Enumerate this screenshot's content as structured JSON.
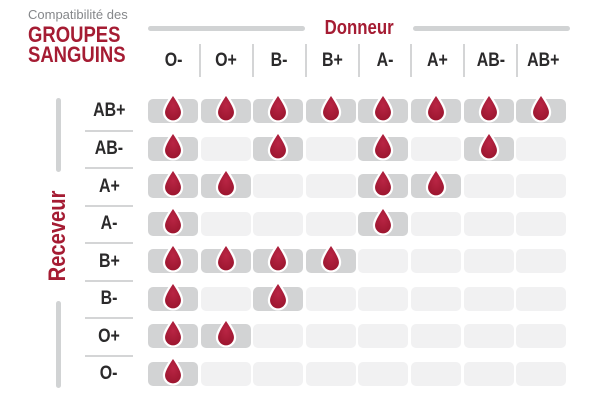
{
  "title": {
    "eyebrow": "Compatibilité des",
    "main_line1": "GROUPES",
    "main_line2": "SANGUINS"
  },
  "donor_axis": {
    "label": "Donneur"
  },
  "receiver_axis": {
    "label": "Receveur"
  },
  "chart_data": {
    "type": "heatmap",
    "title": "Compatibilité des groupes sanguins",
    "x_axis_label": "Donneur",
    "y_axis_label": "Receveur",
    "columns": [
      "O-",
      "O+",
      "B-",
      "B+",
      "A-",
      "A+",
      "AB-",
      "AB+"
    ],
    "rows": [
      "AB+",
      "AB-",
      "A+",
      "A-",
      "B+",
      "B-",
      "O+",
      "O-"
    ],
    "matrix": [
      [
        1,
        1,
        1,
        1,
        1,
        1,
        1,
        1
      ],
      [
        1,
        0,
        1,
        0,
        1,
        0,
        1,
        0
      ],
      [
        1,
        1,
        0,
        0,
        1,
        1,
        0,
        0
      ],
      [
        1,
        0,
        0,
        0,
        1,
        0,
        0,
        0
      ],
      [
        1,
        1,
        1,
        1,
        0,
        0,
        0,
        0
      ],
      [
        1,
        0,
        1,
        0,
        0,
        0,
        0,
        0
      ],
      [
        1,
        1,
        0,
        0,
        0,
        0,
        0,
        0
      ],
      [
        1,
        0,
        0,
        0,
        0,
        0,
        0,
        0
      ]
    ],
    "marker_icon": "blood-drop-icon",
    "marker_meaning": "compatible",
    "legend_position": "none",
    "grid": false
  },
  "colors": {
    "accent_red": "#a51c33",
    "drop_red_light": "#b92544",
    "drop_red_dark": "#96132b",
    "compatible_cell": "#d2d3d4",
    "incompatible_cell": "#f1f1f2",
    "divider_gray": "#d4d5d6",
    "axis_bar_gray": "#d1d3d4",
    "eyebrow_gray": "#85878a",
    "label_dark": "#2b2a2b"
  }
}
